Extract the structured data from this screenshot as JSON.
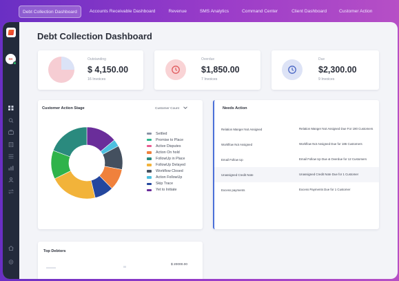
{
  "nav": {
    "tabs": [
      {
        "label": "Debt Collection Dashboard",
        "active": true
      },
      {
        "label": "Accounts Receivable Dashboard",
        "active": false
      },
      {
        "label": "Revenue",
        "active": false
      },
      {
        "label": "SMS Analytics",
        "active": false
      },
      {
        "label": "Command Center",
        "active": false
      },
      {
        "label": "Client Dashboard",
        "active": false
      },
      {
        "label": "Customer Action",
        "active": false
      }
    ]
  },
  "sidebar": {
    "logo": "logo-icon",
    "avatar_initials": "SK",
    "icons": [
      "grid-icon",
      "search-icon",
      "briefcase-icon",
      "document-icon",
      "list-icon",
      "bar-chart-icon",
      "users-icon",
      "transfer-icon",
      "home-icon",
      "settings-icon"
    ]
  },
  "page": {
    "title": "Debt Collection Dashboard"
  },
  "stats": [
    {
      "label": "Outstanding",
      "value": "$ 4,150.00",
      "sub": "16 Invoices",
      "icon": "pie-icon",
      "color": "#f6cdd3"
    },
    {
      "label": "Overdue",
      "value": "$1,850.00",
      "sub": "7 Invoices",
      "icon": "clock-icon",
      "color": "#f9d3d5"
    },
    {
      "label": "Due",
      "value": "$2,300.00",
      "sub": "9 Invoices",
      "icon": "clock-icon",
      "color": "#dde3f6"
    }
  ],
  "customer_action_stage": {
    "title": "Customer Action Stage",
    "dropdown_value": "Customer Count",
    "segments": [
      {
        "label": "Settled",
        "value": 0,
        "color": "#8a93a6"
      },
      {
        "label": "Promise to Place",
        "value": 0,
        "color": "#2fb78f"
      },
      {
        "label": "Active Disputes",
        "value": 0,
        "color": "#e85c91"
      },
      {
        "label": "Action On hold",
        "value": 9,
        "color": "#f0813c"
      },
      {
        "label": "FollowUp in Place",
        "value": 18,
        "color": "#2a8a7e"
      },
      {
        "label": "FollowUp Delayed",
        "value": 20,
        "color": "#f2b33a"
      },
      {
        "label": "Workflow Closed",
        "value": 10,
        "color": "#44505f"
      },
      {
        "label": "Action FollowUp",
        "value": 3,
        "color": "#4dc0e0"
      },
      {
        "label": "Skip Trace",
        "value": 8,
        "color": "#24479e"
      },
      {
        "label": "Yet to Initiate",
        "value": 13,
        "color": "#6a2d9a"
      }
    ],
    "extra_segments": [
      {
        "value": 12,
        "color": "#2fb34a"
      }
    ]
  },
  "needs_action": {
    "title": "Needs Action",
    "rows": [
      {
        "name": "Relation Manger Not Assigned",
        "detail": "Relation Manger Not Assigned Due For 190 Customers"
      },
      {
        "name": "Workflow Not Assigned",
        "detail": "Workflow Not Assigned Due for 186 Customers"
      },
      {
        "name": "Email Follow Up",
        "detail": "Email Follow Up Due & Overdue for 12 Customers"
      },
      {
        "name": "Unassigned Credit Note",
        "detail": "Unassigned Credit Note Due for 1 Customer"
      },
      {
        "name": "Excess payments",
        "detail": "Excess Payments Due for 1 Customer"
      }
    ]
  },
  "top_debtors": {
    "title": "Top Debtors",
    "first_amount": "$ 20000.00"
  }
}
